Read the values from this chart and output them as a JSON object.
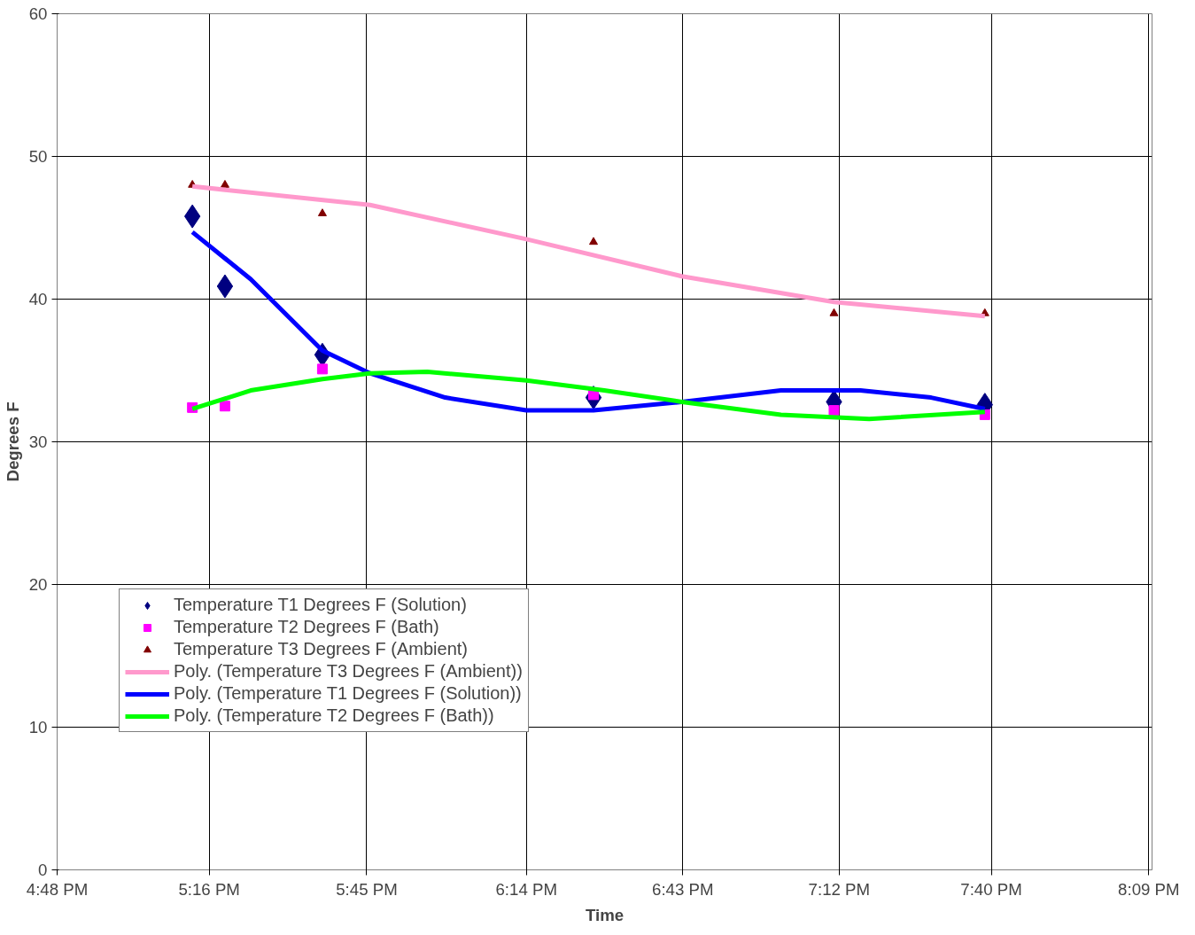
{
  "chart_data": {
    "type": "scatter",
    "xlabel": "Time",
    "ylabel": "Degrees F",
    "xlim": [
      16.8,
      20.16
    ],
    "xticks": [
      {
        "value": 16.8,
        "label": "4:48 PM"
      },
      {
        "value": 17.2667,
        "label": "5:16 PM"
      },
      {
        "value": 17.75,
        "label": "5:45 PM"
      },
      {
        "value": 18.24,
        "label": "6:14 PM"
      },
      {
        "value": 18.72,
        "label": "6:43 PM"
      },
      {
        "value": 19.2,
        "label": "7:12 PM"
      },
      {
        "value": 19.6667,
        "label": "7:40 PM"
      },
      {
        "value": 20.15,
        "label": "8:09 PM"
      }
    ],
    "ylim": [
      0,
      60
    ],
    "yticks": [
      0,
      10,
      20,
      30,
      40,
      50,
      60
    ],
    "grid": true,
    "legend": "bottom left",
    "x": [
      17.215,
      17.315,
      17.614,
      18.446,
      19.184,
      19.647
    ],
    "series": [
      {
        "name": "Temperature T1 Degrees F (Solution)",
        "color": "#000080",
        "marker": "diamond",
        "values": [
          45.8,
          40.9,
          36.1,
          33.1,
          32.8,
          32.6
        ]
      },
      {
        "name": "Temperature T2 Degrees F (Bath)",
        "color": "#ff00ff",
        "marker": "square",
        "values": [
          32.4,
          32.5,
          35.1,
          33.3,
          32.2,
          31.9
        ]
      },
      {
        "name": "Temperature T3 Degrees F (Ambient)",
        "color": "#800000",
        "marker": "triangle",
        "values": [
          48,
          48,
          46,
          44,
          39,
          39
        ]
      },
      {
        "name": "Poly. (Temperature T3 Degrees F (Ambient))",
        "type": "line",
        "color": "#ff99cc",
        "line_style": "solid",
        "x": [
          17.215,
          17.76,
          18.24,
          18.717,
          19.184,
          19.647
        ],
        "values": [
          47.9,
          46.6,
          44.2,
          41.6,
          39.8,
          38.8
        ]
      },
      {
        "name": "Poly. (Temperature T1 Degrees F (Solution))",
        "type": "line",
        "color": "#0000ff",
        "line_style": "solid",
        "x": [
          17.215,
          17.394,
          17.614,
          17.76,
          17.991,
          18.24,
          18.446,
          18.717,
          19.021,
          19.265,
          19.482,
          19.647
        ],
        "values": [
          44.7,
          41.4,
          36.4,
          34.8,
          33.1,
          32.2,
          32.2,
          32.8,
          33.6,
          33.6,
          33.1,
          32.3
        ]
      },
      {
        "name": "Poly. (Temperature T2 Degrees F (Bath))",
        "type": "line",
        "color": "#00ff00",
        "line_style": "solid",
        "x": [
          17.215,
          17.394,
          17.614,
          17.76,
          17.936,
          18.24,
          18.479,
          18.717,
          19.021,
          19.292,
          19.647
        ],
        "values": [
          32.3,
          33.6,
          34.4,
          34.8,
          34.9,
          34.3,
          33.6,
          32.8,
          31.9,
          31.6,
          32.1
        ]
      }
    ]
  }
}
